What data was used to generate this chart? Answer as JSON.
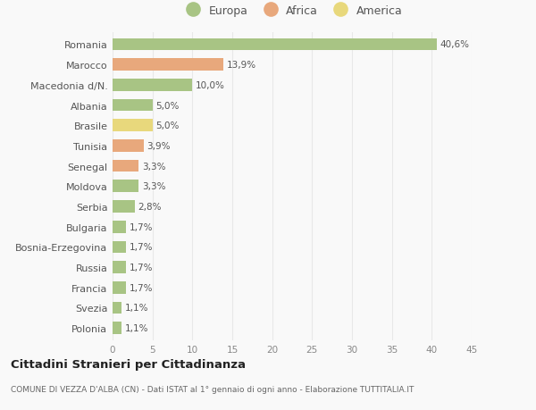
{
  "countries": [
    "Romania",
    "Marocco",
    "Macedonia d/N.",
    "Albania",
    "Brasile",
    "Tunisia",
    "Senegal",
    "Moldova",
    "Serbia",
    "Bulgaria",
    "Bosnia-Erzegovina",
    "Russia",
    "Francia",
    "Svezia",
    "Polonia"
  ],
  "values": [
    40.6,
    13.9,
    10.0,
    5.0,
    5.0,
    3.9,
    3.3,
    3.3,
    2.8,
    1.7,
    1.7,
    1.7,
    1.7,
    1.1,
    1.1
  ],
  "labels": [
    "40,6%",
    "13,9%",
    "10,0%",
    "5,0%",
    "5,0%",
    "3,9%",
    "3,3%",
    "3,3%",
    "2,8%",
    "1,7%",
    "1,7%",
    "1,7%",
    "1,7%",
    "1,1%",
    "1,1%"
  ],
  "colors": [
    "#a8c484",
    "#e8a87c",
    "#a8c484",
    "#a8c484",
    "#e8d87c",
    "#e8a87c",
    "#e8a87c",
    "#a8c484",
    "#a8c484",
    "#a8c484",
    "#a8c484",
    "#a8c484",
    "#a8c484",
    "#a8c484",
    "#a8c484"
  ],
  "legend_labels": [
    "Europa",
    "Africa",
    "America"
  ],
  "legend_colors": [
    "#a8c484",
    "#e8a87c",
    "#e8d87c"
  ],
  "title": "Cittadini Stranieri per Cittadinanza",
  "subtitle": "COMUNE DI VEZZA D'ALBA (CN) - Dati ISTAT al 1° gennaio di ogni anno - Elaborazione TUTTITALIA.IT",
  "xlim": [
    0,
    45
  ],
  "xticks": [
    0,
    5,
    10,
    15,
    20,
    25,
    30,
    35,
    40,
    45
  ],
  "background_color": "#f9f9f9",
  "grid_color": "#e8e8e8"
}
